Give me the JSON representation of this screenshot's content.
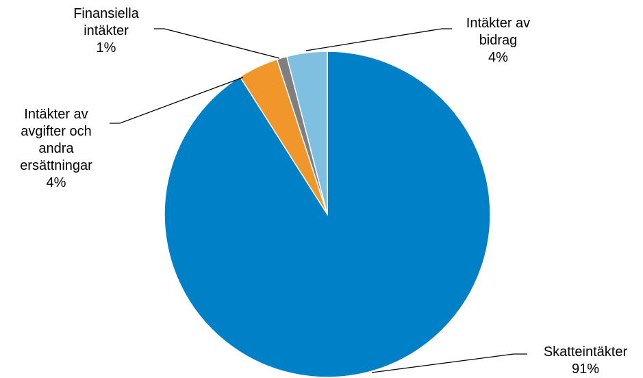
{
  "chart_data": {
    "type": "pie",
    "categories": [
      "Skatteintäkter",
      "Intäkter av avgifter och andra ersättningar",
      "Finansiella intäkter",
      "Intäkter av bidrag"
    ],
    "values": [
      91,
      4,
      1,
      4
    ],
    "value_labels": [
      "91%",
      "4%",
      "1%",
      "4%"
    ],
    "colors": [
      "#0080c6",
      "#f0962a",
      "#7f7f7f",
      "#7fbfdf"
    ]
  }
}
